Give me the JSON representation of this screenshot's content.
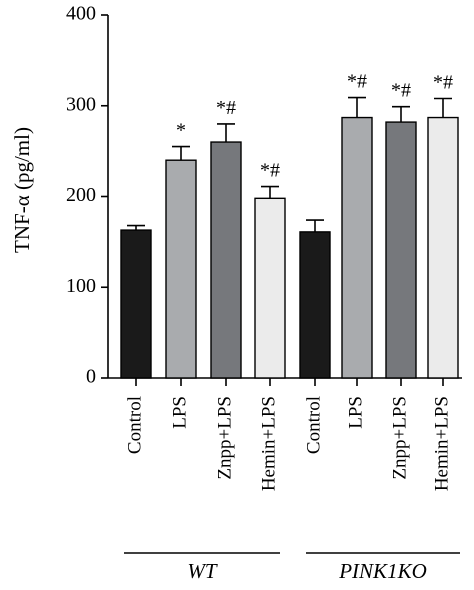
{
  "chart_data": {
    "type": "bar",
    "ylabel": "TNF-α (pg/ml)",
    "ylim": [
      0,
      400
    ],
    "yticks": [
      0,
      100,
      200,
      300,
      400
    ],
    "categories": [
      "Control",
      "LPS",
      "Znpp+LPS",
      "Hemin+LPS",
      "Control",
      "LPS",
      "Znpp+LPS",
      "Hemin+LPS"
    ],
    "values": [
      163,
      240,
      260,
      198,
      161,
      287,
      282,
      287
    ],
    "errors": [
      5,
      15,
      20,
      13,
      13,
      22,
      17,
      21
    ],
    "annotations": [
      "",
      "*",
      "*#",
      "*#",
      "",
      "*#",
      "*#",
      "*#"
    ],
    "bar_colors": [
      "#1a1a1a",
      "#a9abae",
      "#76787c",
      "#ebebeb",
      "#1a1a1a",
      "#a9abae",
      "#76787c",
      "#ebebeb"
    ],
    "groups": [
      {
        "label": "WT",
        "indices": [
          0,
          1,
          2,
          3
        ]
      },
      {
        "label": "PINK1KO",
        "indices": [
          4,
          5,
          6,
          7
        ]
      }
    ],
    "grid": false
  }
}
